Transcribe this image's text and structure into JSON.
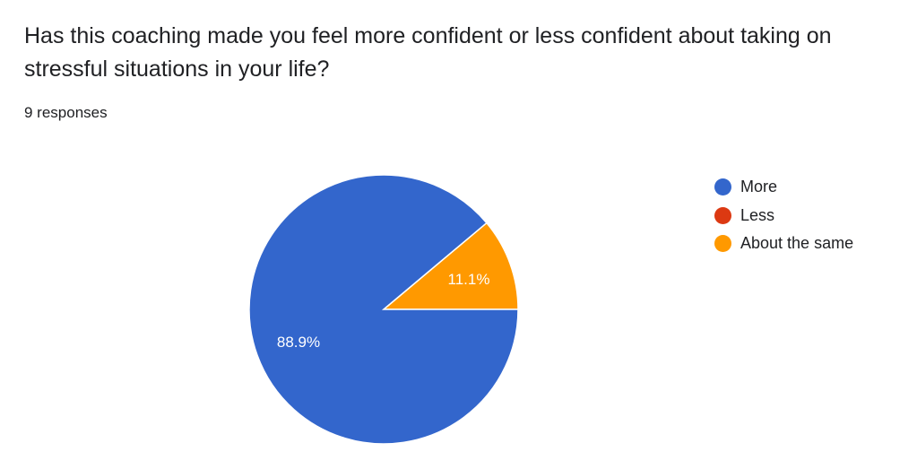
{
  "question": {
    "title": "Has this coaching made you feel more confident or less confident about taking on stressful situations in your life?",
    "response_count": "9 responses"
  },
  "chart_data": {
    "type": "pie",
    "title": "Has this coaching made you feel more confident or less confident about taking on stressful situations in your life?",
    "total_responses": 9,
    "categories": [
      "More",
      "Less",
      "About the same"
    ],
    "values": [
      8,
      0,
      1
    ],
    "percent_labels": [
      "88.9%",
      "",
      "11.1%"
    ],
    "colors": [
      "#3366cc",
      "#dc3912",
      "#ff9900"
    ],
    "legend_position": "right"
  }
}
